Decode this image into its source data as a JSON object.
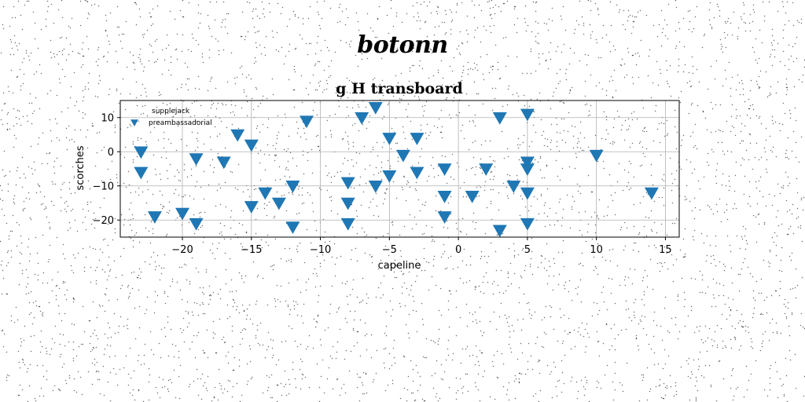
{
  "chart_data": {
    "type": "scatter",
    "suptitle": "botonn",
    "title": "g H transboard",
    "xlabel": "capeline",
    "ylabel": "scorches",
    "xlim": [
      -24.5,
      16
    ],
    "ylim": [
      -25,
      15
    ],
    "xticks": [
      -20,
      -15,
      -10,
      -5,
      0,
      5,
      10,
      15
    ],
    "yticks": [
      -20,
      -10,
      0,
      10
    ],
    "xtick_labels": [
      "−20",
      "−15",
      "−10",
      "−5",
      "0",
      "5",
      "10",
      "15"
    ],
    "ytick_labels": [
      "−20",
      "−10",
      "0",
      "10"
    ],
    "grid": true,
    "legend": {
      "placement": "top-left",
      "entries": [
        "supplejack",
        "preambassadorial"
      ]
    },
    "series": [
      {
        "name": "preambassadorial",
        "color": "#1f77b4",
        "marker": "triangle-down",
        "points": [
          [
            -23,
            0
          ],
          [
            -23,
            -6
          ],
          [
            -22,
            -19
          ],
          [
            -20,
            -18
          ],
          [
            -19,
            -2
          ],
          [
            -19,
            -21
          ],
          [
            -17,
            -3
          ],
          [
            -16,
            5
          ],
          [
            -15,
            2
          ],
          [
            -15,
            -16
          ],
          [
            -14,
            -12
          ],
          [
            -13,
            -15
          ],
          [
            -12,
            -10
          ],
          [
            -12,
            -22
          ],
          [
            -11,
            9
          ],
          [
            -8,
            -9
          ],
          [
            -8,
            -15
          ],
          [
            -8,
            -21
          ],
          [
            -7,
            10
          ],
          [
            -6,
            13
          ],
          [
            -6,
            -10
          ],
          [
            -5,
            4
          ],
          [
            -5,
            -7
          ],
          [
            -4,
            -1
          ],
          [
            -3,
            4
          ],
          [
            -3,
            -6
          ],
          [
            -1,
            -5
          ],
          [
            -1,
            -13
          ],
          [
            -1,
            -19
          ],
          [
            1,
            -13
          ],
          [
            2,
            -5
          ],
          [
            3,
            10
          ],
          [
            3,
            -23
          ],
          [
            4,
            -10
          ],
          [
            5,
            11
          ],
          [
            5,
            -3
          ],
          [
            5,
            -5
          ],
          [
            5,
            -12
          ],
          [
            5,
            -21
          ],
          [
            10,
            -1
          ],
          [
            14,
            -12
          ]
        ]
      }
    ]
  }
}
